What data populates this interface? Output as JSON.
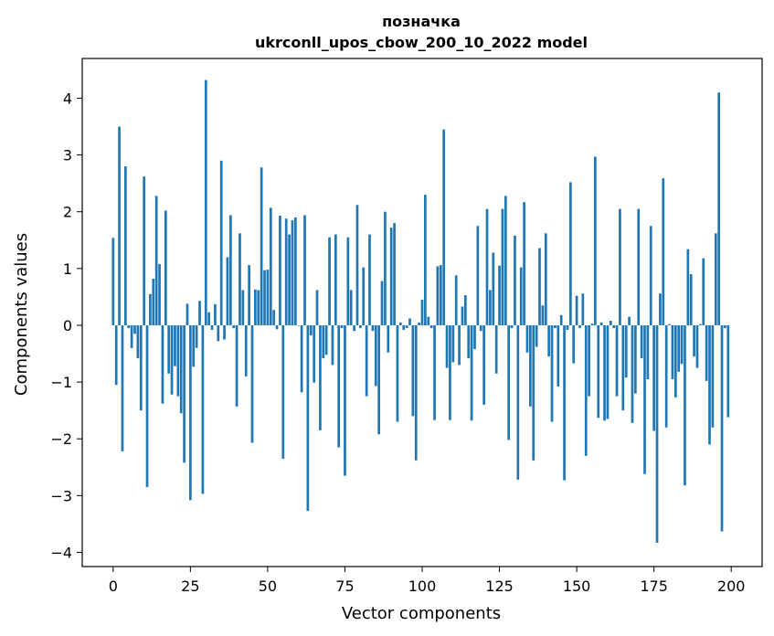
{
  "chart_data": {
    "type": "bar",
    "title": "позначка",
    "subtitle": "ukrconll_upos_cbow_200_10_2022 model",
    "xlabel": "Vector components",
    "ylabel": "Components values",
    "xlim": [
      -10,
      210
    ],
    "ylim": [
      -4.25,
      4.7
    ],
    "xticks": [
      0,
      25,
      50,
      75,
      100,
      125,
      150,
      175,
      200
    ],
    "yticks": [
      -4,
      -3,
      -2,
      -1,
      0,
      1,
      2,
      3,
      4
    ],
    "xtick_labels": [
      "0",
      "25",
      "50",
      "75",
      "100",
      "125",
      "150",
      "175",
      "200"
    ],
    "ytick_labels": [
      "−4",
      "−3",
      "−2",
      "−1",
      "0",
      "1",
      "2",
      "3",
      "4"
    ],
    "bar_color": "#1f77b4",
    "grid": false,
    "values": [
      1.54,
      -1.05,
      3.5,
      -2.22,
      2.8,
      -0.05,
      -0.4,
      -0.15,
      -0.58,
      -1.5,
      2.62,
      -2.85,
      0.55,
      0.82,
      2.28,
      1.08,
      -1.38,
      2.02,
      -0.85,
      -1.22,
      -0.72,
      -1.25,
      -1.55,
      -2.42,
      0.38,
      -3.08,
      -0.73,
      -0.4,
      0.43,
      -2.97,
      4.32,
      0.23,
      -0.08,
      0.37,
      -0.28,
      2.9,
      -0.25,
      1.2,
      1.94,
      -0.05,
      -1.43,
      1.62,
      0.62,
      -0.9,
      1.06,
      -2.07,
      0.63,
      0.62,
      2.78,
      0.97,
      0.98,
      2.07,
      0.27,
      -0.07,
      1.93,
      -2.35,
      1.88,
      1.6,
      1.85,
      1.9,
      0.0,
      -1.18,
      1.94,
      -3.27,
      -0.18,
      -1.01,
      0.62,
      -1.85,
      -0.58,
      -0.52,
      1.55,
      -0.7,
      1.6,
      -2.15,
      -0.05,
      -2.65,
      1.55,
      0.62,
      -0.1,
      2.12,
      -0.05,
      1.02,
      -1.25,
      1.6,
      -0.1,
      -1.07,
      -1.92,
      0.78,
      2.0,
      -0.48,
      1.72,
      1.8,
      -1.7,
      0.05,
      -0.08,
      -0.05,
      0.12,
      -1.6,
      -2.38,
      0.05,
      0.45,
      2.3,
      0.15,
      -0.05,
      -1.67,
      1.04,
      1.06,
      3.45,
      -0.75,
      -1.67,
      -0.65,
      0.88,
      -0.7,
      0.33,
      0.53,
      -0.58,
      -1.68,
      -0.42,
      1.75,
      -0.1,
      -1.4,
      2.05,
      0.62,
      1.28,
      -0.85,
      1.05,
      2.05,
      2.28,
      -2.02,
      -0.05,
      1.58,
      -2.72,
      1.02,
      2.17,
      -0.48,
      -1.43,
      -2.38,
      -0.38,
      1.36,
      0.35,
      1.62,
      -0.55,
      -1.7,
      -0.05,
      -1.08,
      0.18,
      -2.73,
      -0.08,
      2.52,
      -0.67,
      0.52,
      -0.05,
      0.56,
      -2.3,
      -1.25,
      0.03,
      2.97,
      -1.63,
      0.05,
      -1.68,
      -1.65,
      0.08,
      -0.05,
      -1.25,
      2.05,
      -1.5,
      -0.92,
      0.15,
      -1.72,
      -1.2,
      2.05,
      -0.58,
      -2.62,
      -0.95,
      1.75,
      -1.86,
      -3.83,
      0.56,
      2.59,
      -1.8,
      0.02,
      -0.95,
      -1.27,
      -0.82,
      -0.68,
      -2.82,
      1.34,
      0.9,
      -0.55,
      -0.75,
      0.02,
      1.18,
      -0.98,
      -2.1,
      -1.8,
      1.62,
      4.1,
      -3.63,
      -0.05,
      -1.62
    ]
  }
}
